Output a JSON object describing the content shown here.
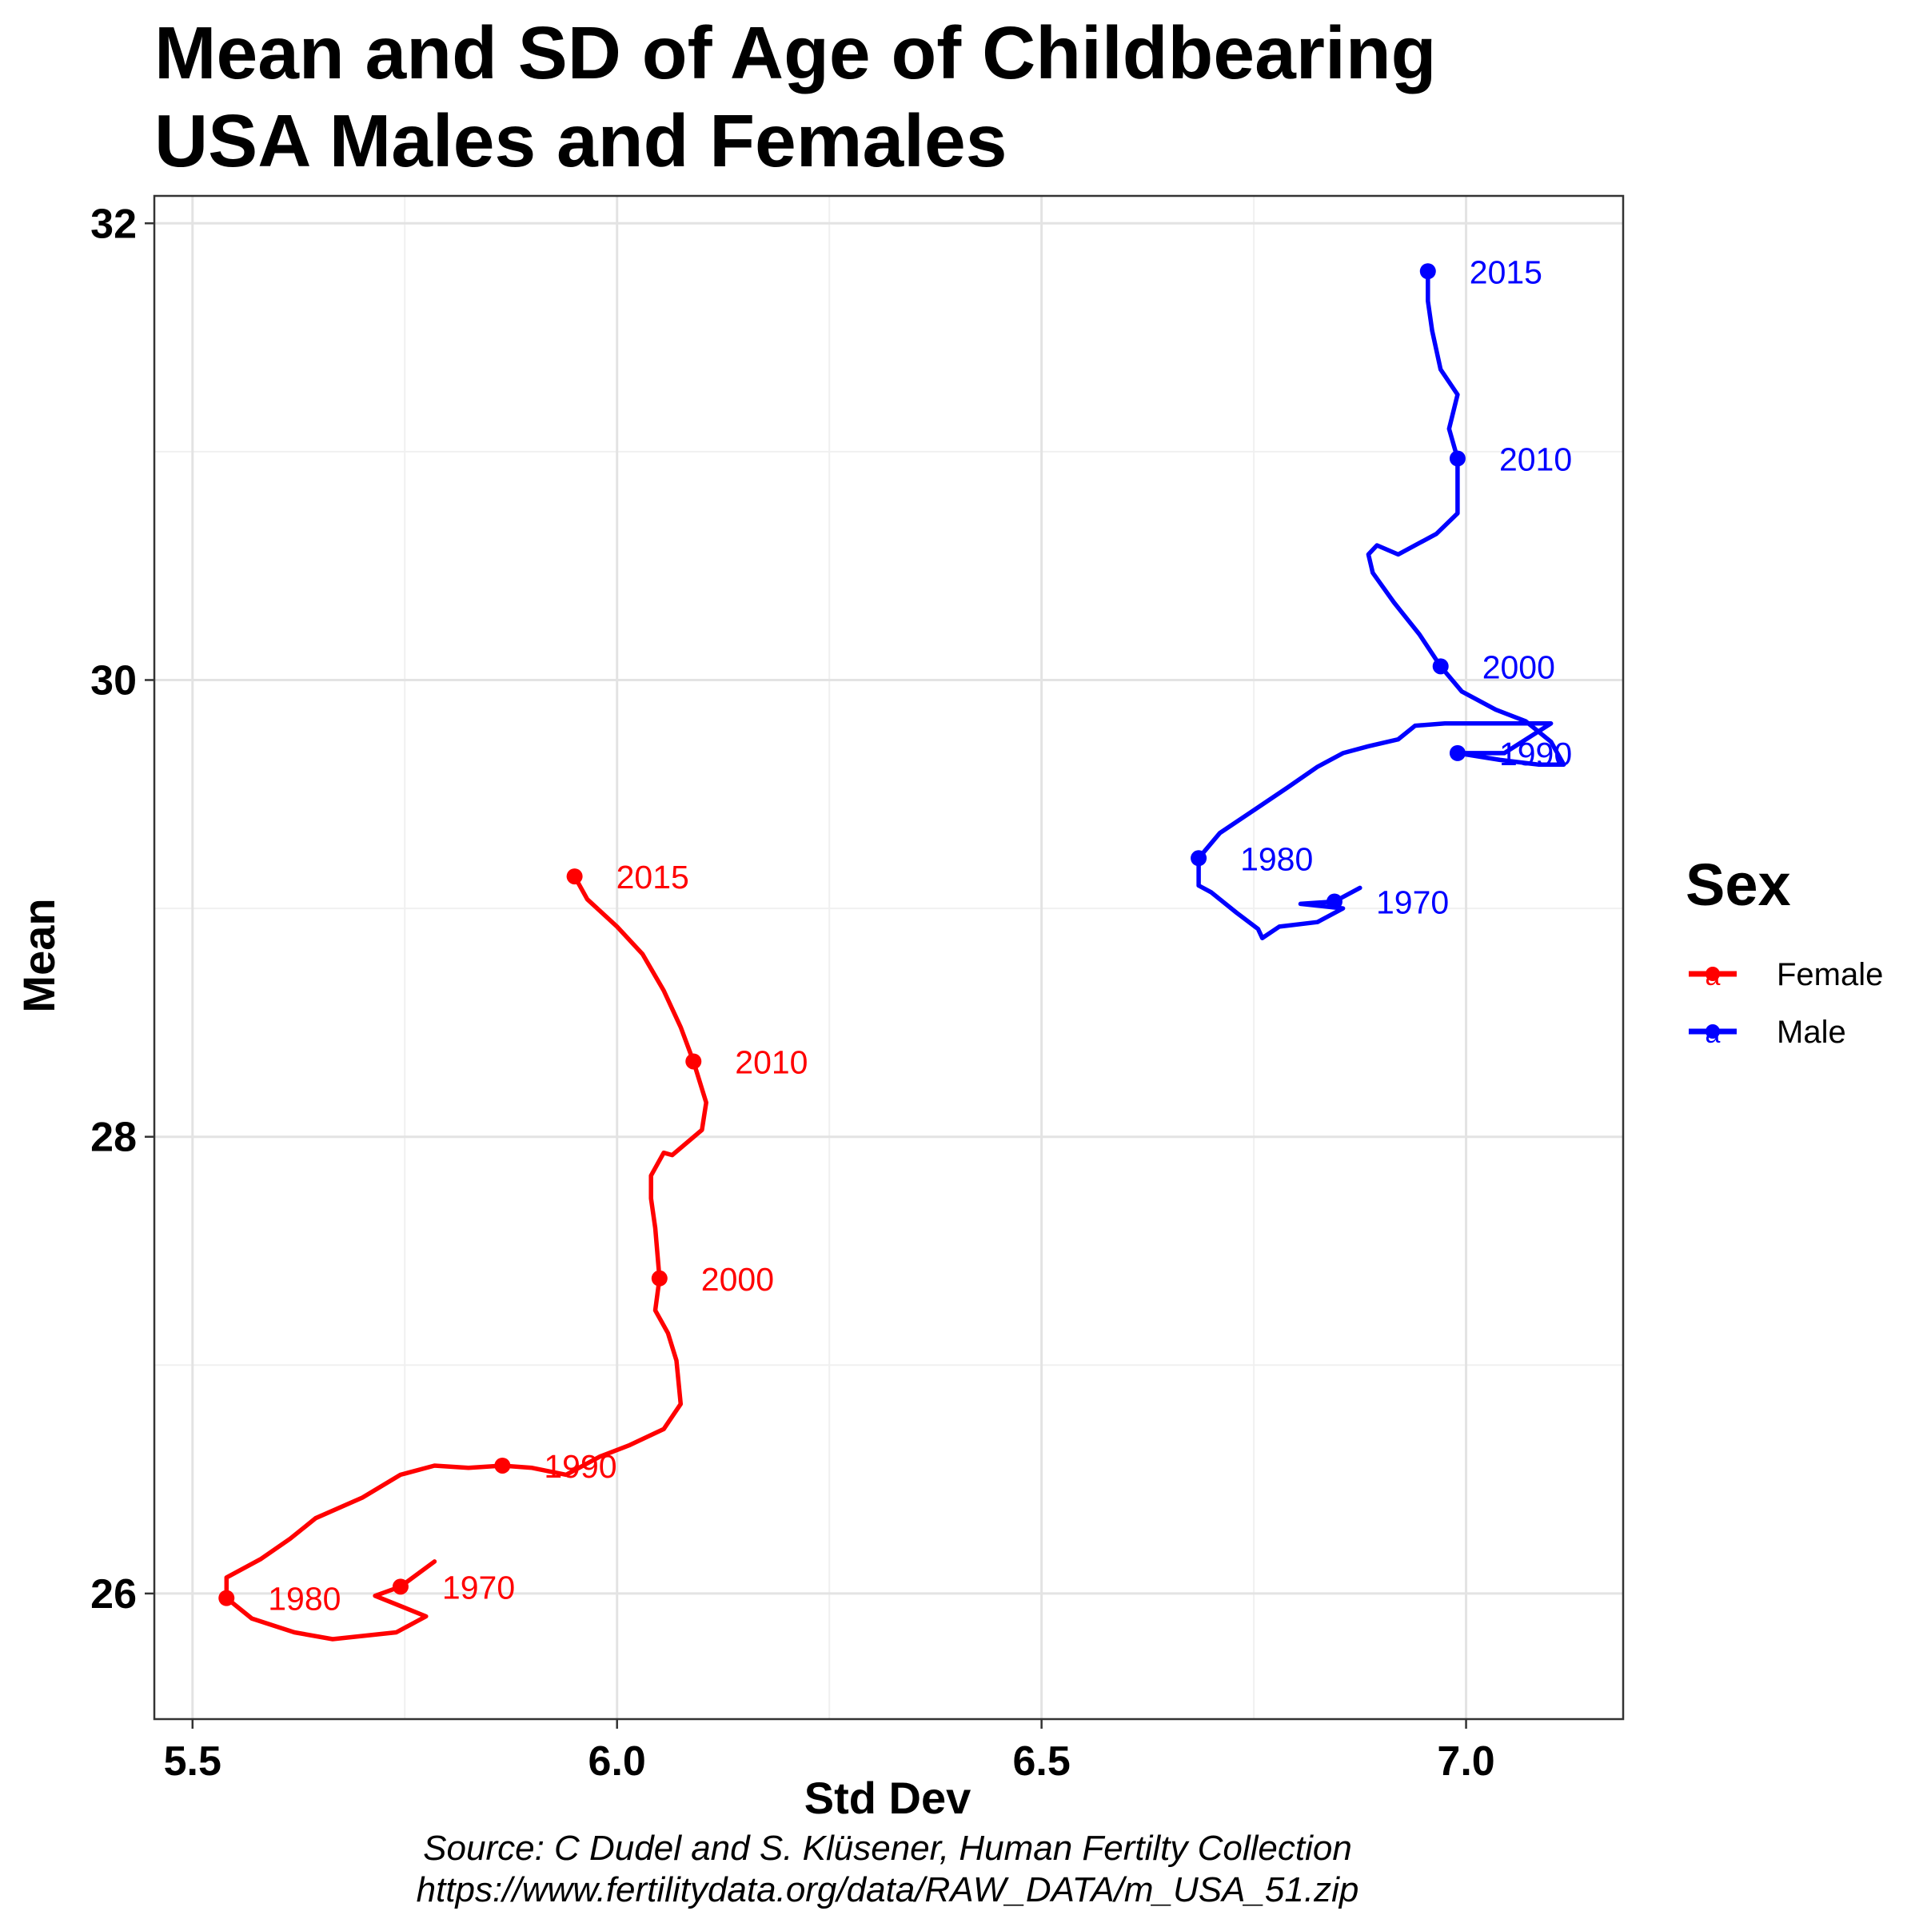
{
  "title_line1": "Mean and SD of Age of Childbearing",
  "title_line2": "USA Males and Females",
  "caption_line1": "Source: C Dudel and S. Klüsener, Human Fertilty Collection",
  "caption_line2": "https://www.fertilitydata.org/data/RAW_DATA/m_USA_51.zip",
  "legend": {
    "title": "Sex",
    "items": [
      {
        "label": "Female",
        "color": "#ff0000",
        "key_glyph": "a"
      },
      {
        "label": "Male",
        "color": "#0000ff",
        "key_glyph": "a"
      }
    ]
  },
  "chart_data": {
    "type": "line",
    "xlabel": "Std Dev",
    "ylabel": "Mean",
    "xlim": [
      5.455,
      7.185
    ],
    "ylim": [
      25.45,
      32.12
    ],
    "x_ticks": [
      5.5,
      6.0,
      6.5,
      7.0
    ],
    "x_tick_labels": [
      "5.5",
      "6.0",
      "6.5",
      "7.0"
    ],
    "y_ticks": [
      26,
      28,
      30,
      32
    ],
    "y_tick_labels": [
      "26",
      "28",
      "30",
      "32"
    ],
    "grid": true,
    "legend_position": "right",
    "series": [
      {
        "name": "Female",
        "color": "#ff0000",
        "points": [
          [
            5.785,
            26.14
          ],
          [
            5.745,
            26.03
          ],
          [
            5.715,
            25.99
          ],
          [
            5.775,
            25.9
          ],
          [
            5.74,
            25.83
          ],
          [
            5.665,
            25.8
          ],
          [
            5.62,
            25.83
          ],
          [
            5.57,
            25.89
          ],
          [
            5.54,
            25.98
          ],
          [
            5.54,
            26.07
          ],
          [
            5.58,
            26.15
          ],
          [
            5.615,
            26.24
          ],
          [
            5.645,
            26.33
          ],
          [
            5.7,
            26.42
          ],
          [
            5.745,
            26.52
          ],
          [
            5.785,
            26.56
          ],
          [
            5.825,
            26.55
          ],
          [
            5.865,
            26.56
          ],
          [
            5.9,
            26.55
          ],
          [
            5.94,
            26.52
          ],
          [
            5.98,
            26.6
          ],
          [
            6.015,
            26.65
          ],
          [
            6.055,
            26.72
          ],
          [
            6.075,
            26.83
          ],
          [
            6.07,
            27.02
          ],
          [
            6.06,
            27.14
          ],
          [
            6.045,
            27.24
          ],
          [
            6.05,
            27.38
          ],
          [
            6.045,
            27.6
          ],
          [
            6.04,
            27.73
          ],
          [
            6.04,
            27.83
          ],
          [
            6.055,
            27.93
          ],
          [
            6.065,
            27.92
          ],
          [
            6.1,
            28.03
          ],
          [
            6.105,
            28.15
          ],
          [
            6.09,
            28.33
          ],
          [
            6.075,
            28.48
          ],
          [
            6.055,
            28.64
          ],
          [
            6.03,
            28.8
          ],
          [
            6,
            28.92
          ],
          [
            5.965,
            29.04
          ],
          [
            5.95,
            29.14
          ]
        ],
        "labels": [
          {
            "year": "1970",
            "x": 5.745,
            "y": 26.03
          },
          {
            "year": "1980",
            "x": 5.54,
            "y": 25.98
          },
          {
            "year": "1990",
            "x": 5.865,
            "y": 26.56
          },
          {
            "year": "2000",
            "x": 6.05,
            "y": 27.38
          },
          {
            "year": "2010",
            "x": 6.09,
            "y": 28.33
          },
          {
            "year": "2015",
            "x": 5.95,
            "y": 29.14
          }
        ]
      },
      {
        "name": "Male",
        "color": "#0000ff",
        "points": [
          [
            6.875,
            29.09
          ],
          [
            6.845,
            29.03
          ],
          [
            6.805,
            29.02
          ],
          [
            6.855,
            29.0
          ],
          [
            6.825,
            28.94
          ],
          [
            6.78,
            28.92
          ],
          [
            6.76,
            28.87
          ],
          [
            6.755,
            28.91
          ],
          [
            6.73,
            28.98
          ],
          [
            6.7,
            29.07
          ],
          [
            6.685,
            29.1
          ],
          [
            6.685,
            29.22
          ],
          [
            6.71,
            29.33
          ],
          [
            6.75,
            29.43
          ],
          [
            6.79,
            29.53
          ],
          [
            6.825,
            29.62
          ],
          [
            6.855,
            29.68
          ],
          [
            6.885,
            29.71
          ],
          [
            6.92,
            29.74
          ],
          [
            6.94,
            29.8
          ],
          [
            6.975,
            29.81
          ],
          [
            7.02,
            29.81
          ],
          [
            7.1,
            29.81
          ],
          [
            7.045,
            29.68
          ],
          [
            6.99,
            29.68
          ],
          [
            7.04,
            29.65
          ],
          [
            7.085,
            29.63
          ],
          [
            7.115,
            29.63
          ],
          [
            7.1,
            29.73
          ],
          [
            7.07,
            29.82
          ],
          [
            7.035,
            29.87
          ],
          [
            6.995,
            29.95
          ],
          [
            6.97,
            30.06
          ],
          [
            6.945,
            30.2
          ],
          [
            6.915,
            30.34
          ],
          [
            6.89,
            30.47
          ],
          [
            6.885,
            30.55
          ],
          [
            6.895,
            30.59
          ],
          [
            6.92,
            30.55
          ],
          [
            6.965,
            30.64
          ],
          [
            6.99,
            30.73
          ],
          [
            6.99,
            30.84
          ],
          [
            6.99,
            30.97
          ],
          [
            6.98,
            31.1
          ],
          [
            6.99,
            31.25
          ],
          [
            6.97,
            31.36
          ],
          [
            6.96,
            31.53
          ],
          [
            6.955,
            31.66
          ],
          [
            6.955,
            31.79
          ]
        ],
        "labels": [
          {
            "year": "1970",
            "x": 6.845,
            "y": 29.03
          },
          {
            "year": "1980",
            "x": 6.685,
            "y": 29.22
          },
          {
            "year": "1990",
            "x": 6.99,
            "y": 29.68
          },
          {
            "year": "2000",
            "x": 6.97,
            "y": 30.06
          },
          {
            "year": "2010",
            "x": 6.99,
            "y": 30.97
          },
          {
            "year": "2015",
            "x": 6.955,
            "y": 31.79
          }
        ]
      }
    ]
  }
}
